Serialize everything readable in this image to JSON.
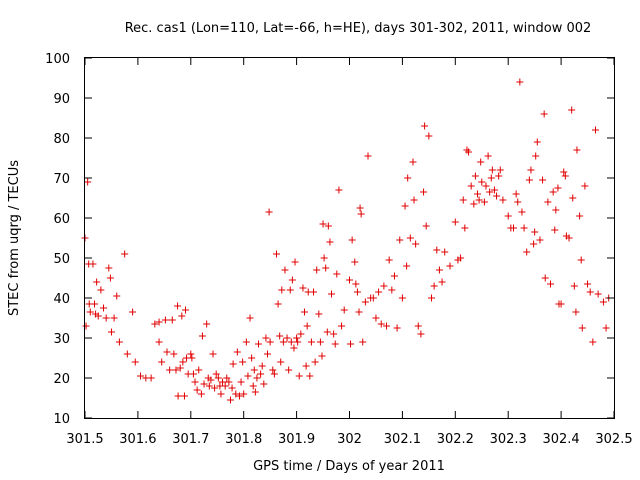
{
  "chart_data": {
    "type": "scatter",
    "title": "Rec. cas1 (Lon=110, Lat=-66, h=HE), days 301-302, 2011, window 002",
    "xlabel": "GPS time / Days of year 2011",
    "ylabel": "STEC from uqrg / TECUs",
    "xlim": [
      301.5,
      302.5
    ],
    "ylim": [
      10,
      100
    ],
    "xticks": [
      "301.5",
      "301.6",
      "301.7",
      "301.8",
      "301.9",
      "302",
      "302.1",
      "302.2",
      "302.3",
      "302.4",
      "302.5"
    ],
    "yticks": [
      "10",
      "20",
      "30",
      "40",
      "50",
      "60",
      "70",
      "80",
      "90",
      "100"
    ],
    "grid": false,
    "marker": "plus",
    "color": "#e00000",
    "series": [
      {
        "name": "STEC",
        "points": [
          [
            301.5,
            55.0
          ],
          [
            301.502,
            33.0
          ],
          [
            301.505,
            69.0
          ],
          [
            301.507,
            48.5
          ],
          [
            301.508,
            38.5
          ],
          [
            301.51,
            36.5
          ],
          [
            301.515,
            48.5
          ],
          [
            301.518,
            38.5
          ],
          [
            301.52,
            36.0
          ],
          [
            301.522,
            44.0
          ],
          [
            301.525,
            35.5
          ],
          [
            301.53,
            42.0
          ],
          [
            301.535,
            37.5
          ],
          [
            301.54,
            35.0
          ],
          [
            301.545,
            47.5
          ],
          [
            301.548,
            45.0
          ],
          [
            301.55,
            31.5
          ],
          [
            301.555,
            35.0
          ],
          [
            301.56,
            40.5
          ],
          [
            301.565,
            29.0
          ],
          [
            301.575,
            51.0
          ],
          [
            301.58,
            26.0
          ],
          [
            301.59,
            36.5
          ],
          [
            301.595,
            24.0
          ],
          [
            301.605,
            20.5
          ],
          [
            301.615,
            20.0
          ],
          [
            301.625,
            20.0
          ],
          [
            301.632,
            33.5
          ],
          [
            301.64,
            34.0
          ],
          [
            301.64,
            29.0
          ],
          [
            301.645,
            24.0
          ],
          [
            301.652,
            34.5
          ],
          [
            301.655,
            26.5
          ],
          [
            301.66,
            22.0
          ],
          [
            301.665,
            34.5
          ],
          [
            301.668,
            26.0
          ],
          [
            301.672,
            22.0
          ],
          [
            301.675,
            38.0
          ],
          [
            301.676,
            15.5
          ],
          [
            301.68,
            22.5
          ],
          [
            301.683,
            35.5
          ],
          [
            301.685,
            24.0
          ],
          [
            301.688,
            15.5
          ],
          [
            301.69,
            37.0
          ],
          [
            301.692,
            25.0
          ],
          [
            301.695,
            21.0
          ],
          [
            301.7,
            26.0
          ],
          [
            301.702,
            25.0
          ],
          [
            301.705,
            21.0
          ],
          [
            301.708,
            19.0
          ],
          [
            301.712,
            17.0
          ],
          [
            301.715,
            22.0
          ],
          [
            301.72,
            16.0
          ],
          [
            301.722,
            30.5
          ],
          [
            301.725,
            18.5
          ],
          [
            301.73,
            33.5
          ],
          [
            301.733,
            20.0
          ],
          [
            301.735,
            18.0
          ],
          [
            301.738,
            19.5
          ],
          [
            301.742,
            26.0
          ],
          [
            301.745,
            17.5
          ],
          [
            301.748,
            21.0
          ],
          [
            301.752,
            20.0
          ],
          [
            301.755,
            18.0
          ],
          [
            301.757,
            16.0
          ],
          [
            301.76,
            19.0
          ],
          [
            301.765,
            18.0
          ],
          [
            301.768,
            20.0
          ],
          [
            301.772,
            19.0
          ],
          [
            301.775,
            14.5
          ],
          [
            301.778,
            17.5
          ],
          [
            301.78,
            23.5
          ],
          [
            301.785,
            16.0
          ],
          [
            301.788,
            26.5
          ],
          [
            301.792,
            15.5
          ],
          [
            301.795,
            19.0
          ],
          [
            301.798,
            24.0
          ],
          [
            301.8,
            16.0
          ],
          [
            301.805,
            29.0
          ],
          [
            301.808,
            20.5
          ],
          [
            301.812,
            35.0
          ],
          [
            301.815,
            25.0
          ],
          [
            301.818,
            18.0
          ],
          [
            301.82,
            22.0
          ],
          [
            301.822,
            16.5
          ],
          [
            301.825,
            20.0
          ],
          [
            301.828,
            28.5
          ],
          [
            301.832,
            21.0
          ],
          [
            301.835,
            23.0
          ],
          [
            301.838,
            18.5
          ],
          [
            301.842,
            30.0
          ],
          [
            301.845,
            26.0
          ],
          [
            301.848,
            61.5
          ],
          [
            301.85,
            29.0
          ],
          [
            301.855,
            22.0
          ],
          [
            301.858,
            21.0
          ],
          [
            301.862,
            51.0
          ],
          [
            301.865,
            38.5
          ],
          [
            301.868,
            30.5
          ],
          [
            301.87,
            24.0
          ],
          [
            301.872,
            42.0
          ],
          [
            301.875,
            29.0
          ],
          [
            301.878,
            47.0
          ],
          [
            301.882,
            30.0
          ],
          [
            301.885,
            22.0
          ],
          [
            301.888,
            42.0
          ],
          [
            301.89,
            29.0
          ],
          [
            301.892,
            44.5
          ],
          [
            301.895,
            27.5
          ],
          [
            301.897,
            49.0
          ],
          [
            301.9,
            30.0
          ],
          [
            301.902,
            29.0
          ],
          [
            301.905,
            20.5
          ],
          [
            301.908,
            31.0
          ],
          [
            301.912,
            42.5
          ],
          [
            301.915,
            36.5
          ],
          [
            301.918,
            23.0
          ],
          [
            301.92,
            33.0
          ],
          [
            301.922,
            41.5
          ],
          [
            301.925,
            20.5
          ],
          [
            301.928,
            29.0
          ],
          [
            301.932,
            41.5
          ],
          [
            301.935,
            24.0
          ],
          [
            301.938,
            47.0
          ],
          [
            301.942,
            36.0
          ],
          [
            301.945,
            29.0
          ],
          [
            301.948,
            25.5
          ],
          [
            301.95,
            58.5
          ],
          [
            301.952,
            50.0
          ],
          [
            301.955,
            47.5
          ],
          [
            301.958,
            31.5
          ],
          [
            301.96,
            58.0
          ],
          [
            301.963,
            54.0
          ],
          [
            301.966,
            41.0
          ],
          [
            301.97,
            31.0
          ],
          [
            301.973,
            28.5
          ],
          [
            301.976,
            46.0
          ],
          [
            301.98,
            67.0
          ],
          [
            301.985,
            33.0
          ],
          [
            301.99,
            37.0
          ],
          [
            302.0,
            44.5
          ],
          [
            302.002,
            28.5
          ],
          [
            302.005,
            54.5
          ],
          [
            302.01,
            49.0
          ],
          [
            302.012,
            43.5
          ],
          [
            302.015,
            41.5
          ],
          [
            302.018,
            36.5
          ],
          [
            302.02,
            62.5
          ],
          [
            302.022,
            61.0
          ],
          [
            302.025,
            29.0
          ],
          [
            302.03,
            39.0
          ],
          [
            302.035,
            75.5
          ],
          [
            302.04,
            40.0
          ],
          [
            302.045,
            40.0
          ],
          [
            302.05,
            35.0
          ],
          [
            302.055,
            41.5
          ],
          [
            302.06,
            33.5
          ],
          [
            302.065,
            43.0
          ],
          [
            302.07,
            33.0
          ],
          [
            302.075,
            49.5
          ],
          [
            302.08,
            42.0
          ],
          [
            302.085,
            45.5
          ],
          [
            302.09,
            32.5
          ],
          [
            302.095,
            54.5
          ],
          [
            302.1,
            40.0
          ],
          [
            302.105,
            63.0
          ],
          [
            302.108,
            48.0
          ],
          [
            302.11,
            70.0
          ],
          [
            302.115,
            55.0
          ],
          [
            302.12,
            74.0
          ],
          [
            302.122,
            64.5
          ],
          [
            302.125,
            53.5
          ],
          [
            302.13,
            33.0
          ],
          [
            302.135,
            31.0
          ],
          [
            302.14,
            66.5
          ],
          [
            302.142,
            83.0
          ],
          [
            302.145,
            58.0
          ],
          [
            302.15,
            80.5
          ],
          [
            302.155,
            40.0
          ],
          [
            302.16,
            43.0
          ],
          [
            302.165,
            52.0
          ],
          [
            302.17,
            47.0
          ],
          [
            302.175,
            44.0
          ],
          [
            302.18,
            51.5
          ],
          [
            302.19,
            48.0
          ],
          [
            302.2,
            59.0
          ],
          [
            302.205,
            49.5
          ],
          [
            302.21,
            50.0
          ],
          [
            302.215,
            64.5
          ],
          [
            302.218,
            57.5
          ],
          [
            302.222,
            77.0
          ],
          [
            302.225,
            76.5
          ],
          [
            302.23,
            68.0
          ],
          [
            302.235,
            63.5
          ],
          [
            302.238,
            70.5
          ],
          [
            302.242,
            66.0
          ],
          [
            302.245,
            64.5
          ],
          [
            302.248,
            74.0
          ],
          [
            302.25,
            69.0
          ],
          [
            302.255,
            64.0
          ],
          [
            302.258,
            68.0
          ],
          [
            302.262,
            75.5
          ],
          [
            302.265,
            66.5
          ],
          [
            302.268,
            70.0
          ],
          [
            302.27,
            72.0
          ],
          [
            302.274,
            67.0
          ],
          [
            302.278,
            65.5
          ],
          [
            302.282,
            70.5
          ],
          [
            302.285,
            72.0
          ],
          [
            302.29,
            64.5
          ],
          [
            302.3,
            60.5
          ],
          [
            302.305,
            57.5
          ],
          [
            302.31,
            57.5
          ],
          [
            302.315,
            66.0
          ],
          [
            302.318,
            64.0
          ],
          [
            302.322,
            94.0
          ],
          [
            302.326,
            61.5
          ],
          [
            302.33,
            57.5
          ],
          [
            302.335,
            51.5
          ],
          [
            302.34,
            69.5
          ],
          [
            302.343,
            72.0
          ],
          [
            302.348,
            53.5
          ],
          [
            302.35,
            56.5
          ],
          [
            302.352,
            75.5
          ],
          [
            302.355,
            79.0
          ],
          [
            302.36,
            54.5
          ],
          [
            302.365,
            69.5
          ],
          [
            302.368,
            86.0
          ],
          [
            302.37,
            45.0
          ],
          [
            302.375,
            64.0
          ],
          [
            302.38,
            43.5
          ],
          [
            302.385,
            66.5
          ],
          [
            302.388,
            57.0
          ],
          [
            302.39,
            62.0
          ],
          [
            302.394,
            67.5
          ],
          [
            302.396,
            38.5
          ],
          [
            302.4,
            38.5
          ],
          [
            302.405,
            71.5
          ],
          [
            302.408,
            70.5
          ],
          [
            302.41,
            55.5
          ],
          [
            302.415,
            55.0
          ],
          [
            302.42,
            87.0
          ],
          [
            302.422,
            65.0
          ],
          [
            302.425,
            43.0
          ],
          [
            302.428,
            36.5
          ],
          [
            302.43,
            77.0
          ],
          [
            302.435,
            60.5
          ],
          [
            302.438,
            49.5
          ],
          [
            302.44,
            32.5
          ],
          [
            302.445,
            68.0
          ],
          [
            302.45,
            43.5
          ],
          [
            302.455,
            41.5
          ],
          [
            302.46,
            29.0
          ],
          [
            302.465,
            82.0
          ],
          [
            302.47,
            41.0
          ],
          [
            302.48,
            39.0
          ],
          [
            302.485,
            32.5
          ],
          [
            302.49,
            40.0
          ]
        ]
      }
    ]
  }
}
